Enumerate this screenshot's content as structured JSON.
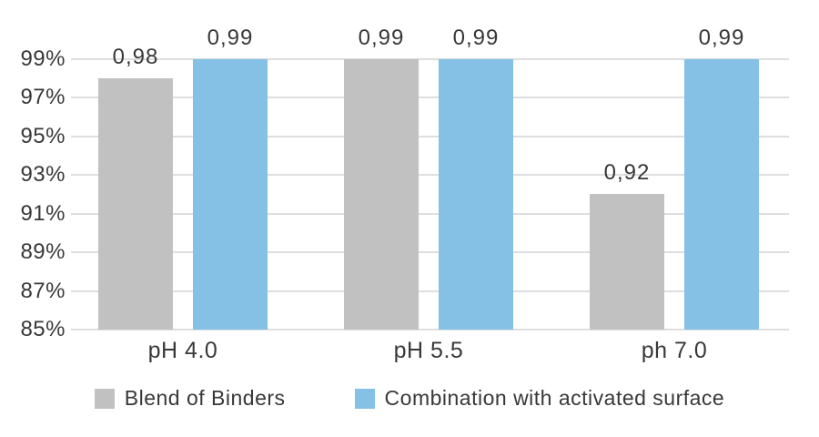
{
  "chart_data": {
    "type": "bar",
    "title": "",
    "categories": [
      "pH 4.0",
      "pH 5.5",
      "ph 7.0"
    ],
    "series": [
      {
        "name": "Blend of Binders",
        "color": "#c1c1c1",
        "values": [
          0.98,
          0.99,
          0.92
        ],
        "value_labels": [
          "0,98",
          "0,99",
          "0,92"
        ]
      },
      {
        "name": "Combination with activated surface",
        "color": "#85c1e5",
        "values": [
          0.99,
          0.99,
          0.99
        ],
        "value_labels": [
          "0,99",
          "0,99",
          "0,99"
        ]
      }
    ],
    "ylim": [
      0.85,
      0.99
    ],
    "yticks": [
      0.99,
      0.97,
      0.95,
      0.93,
      0.91,
      0.89,
      0.87,
      0.85
    ],
    "ytick_labels": [
      "99%",
      "97%",
      "95%",
      "93%",
      "91%",
      "89%",
      "87%",
      "85%"
    ],
    "grid": true,
    "gridline_color": "#dedede",
    "text_color": "#383838",
    "legend_position": "bottom"
  }
}
